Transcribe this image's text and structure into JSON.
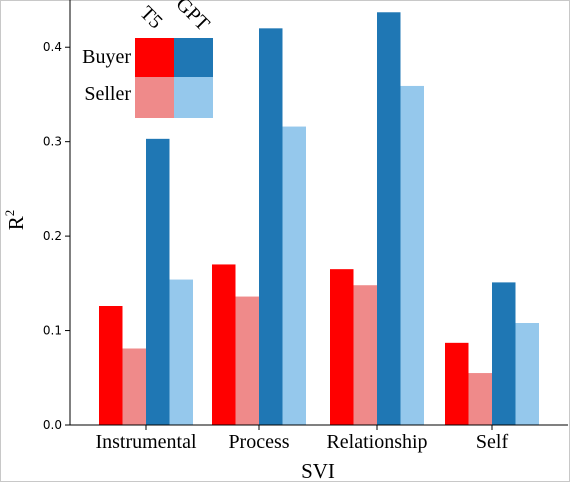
{
  "chart_data": {
    "type": "bar",
    "title": "",
    "xlabel": "SVI",
    "ylabel": "R",
    "ylabel_superscript": "2",
    "categories": [
      "Instrumental",
      "Process",
      "Relationship",
      "Self"
    ],
    "ylim": [
      0,
      0.45
    ],
    "yticks": [
      "0.0",
      "0.1",
      "0.2",
      "0.3",
      "0.4"
    ],
    "grid": false,
    "legend": {
      "placement": "top-left",
      "columns": [
        "T5",
        "GPT"
      ],
      "rows": [
        "Buyer",
        "Seller"
      ]
    },
    "series": [
      {
        "name": "T5 Buyer",
        "model": "T5",
        "role": "Buyer",
        "color": "#ff0000",
        "values": [
          0.126,
          0.17,
          0.165,
          0.087
        ]
      },
      {
        "name": "T5 Seller",
        "model": "T5",
        "role": "Seller",
        "color": "#ef8a8a",
        "values": [
          0.081,
          0.136,
          0.148,
          0.055
        ]
      },
      {
        "name": "GPT Buyer",
        "model": "GPT",
        "role": "Buyer",
        "color": "#1f77b4",
        "values": [
          0.303,
          0.42,
          0.437,
          0.151
        ]
      },
      {
        "name": "GPT Seller",
        "model": "GPT",
        "role": "Seller",
        "color": "#95c8ec",
        "values": [
          0.154,
          0.316,
          0.359,
          0.108
        ]
      }
    ]
  }
}
